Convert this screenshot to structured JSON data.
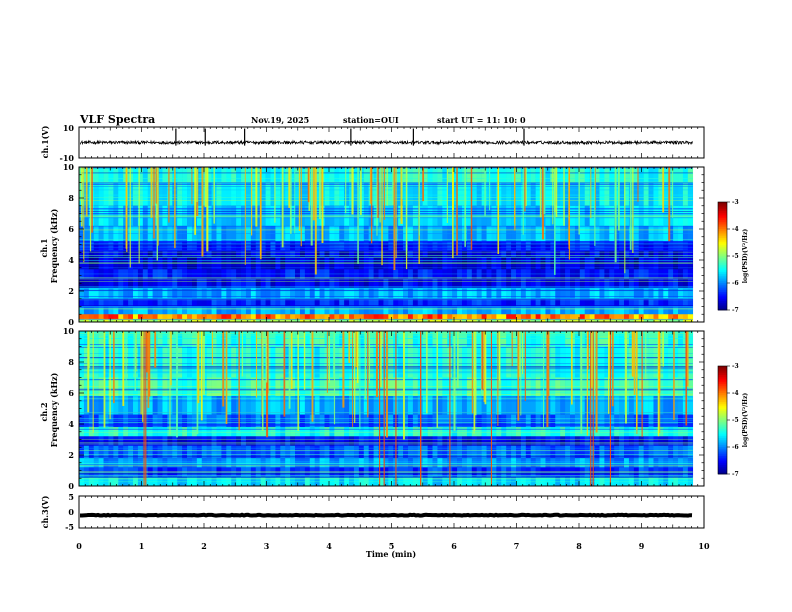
{
  "header": {
    "title": "VLF Spectra",
    "date": "Nov.19, 2025",
    "station": "station=OUI",
    "start": "start  UT  =   11: 10: 0"
  },
  "chart_data": [
    {
      "type": "line",
      "name": "ch1-waveform",
      "ylabel": "ch.1(V)",
      "ylim": [
        -10,
        10
      ],
      "y_ticks": [
        "10",
        "-10"
      ],
      "baseline": 0,
      "noise_amplitude": 1,
      "spike_times_min": [
        1.55,
        2.02,
        2.65,
        4.35,
        5.35,
        7.12
      ]
    },
    {
      "type": "heatmap",
      "name": "ch1-spectrogram",
      "ylabel": "ch.1\nFrequency (kHz)",
      "ylim": [
        0,
        10
      ],
      "y_ticks": [
        "0",
        "2",
        "4",
        "6",
        "8",
        "10"
      ],
      "colorbar": {
        "label": "log(PSD)(V²/Hz)",
        "ticks": [
          "-3",
          "-4",
          "-5",
          "-6",
          "-7"
        ],
        "range": [
          -7,
          -3
        ]
      }
    },
    {
      "type": "heatmap",
      "name": "ch2-spectrogram",
      "ylabel": "ch.2\nFrequency (kHz)",
      "ylim": [
        0,
        10
      ],
      "y_ticks": [
        "0",
        "2",
        "4",
        "6",
        "8",
        "10"
      ],
      "colorbar": {
        "label": "log(PSD)(V²/Hz)",
        "ticks": [
          "-3",
          "-4",
          "-5",
          "-6",
          "-7"
        ],
        "range": [
          -7,
          -3
        ]
      }
    },
    {
      "type": "line",
      "name": "ch3-waveform",
      "ylabel": "ch.3(V)",
      "ylim": [
        -5,
        5
      ],
      "y_ticks": [
        "5",
        "0",
        "-5"
      ],
      "baseline": -1,
      "noise_amplitude": 0.25
    }
  ],
  "x_axis": {
    "label": "Time  (min)",
    "range": [
      0,
      10
    ],
    "ticks": [
      "0",
      "1",
      "2",
      "3",
      "4",
      "5",
      "6",
      "7",
      "8",
      "9",
      "10"
    ],
    "data_end": 9.82
  },
  "colors": {
    "axis": "#000000",
    "background": "#ffffff"
  }
}
